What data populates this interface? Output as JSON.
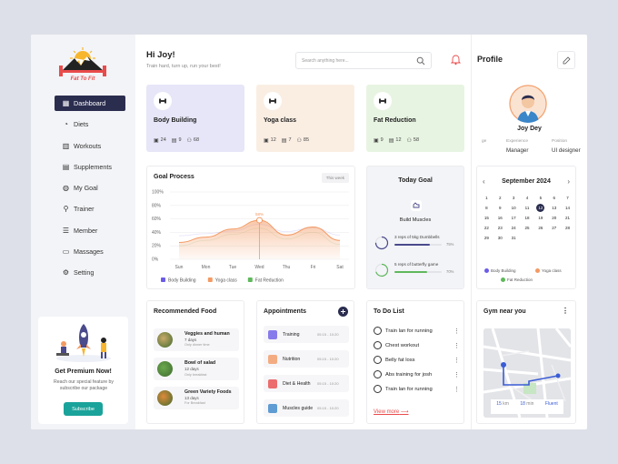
{
  "brand": {
    "logo_text": "Fat To Fit"
  },
  "sidebar": {
    "items": [
      {
        "label": "Dashboard",
        "icon": "grid-icon",
        "active": true
      },
      {
        "label": "Diets",
        "icon": "diet-icon"
      },
      {
        "label": "Workouts",
        "icon": "workout-icon"
      },
      {
        "label": "Supplements",
        "icon": "supplement-icon"
      },
      {
        "label": "My Goal",
        "icon": "goal-icon"
      },
      {
        "label": "Trainer",
        "icon": "trainer-icon"
      },
      {
        "label": "Member",
        "icon": "member-icon"
      },
      {
        "label": "Massages",
        "icon": "message-icon"
      },
      {
        "label": "Setting",
        "icon": "gear-icon"
      }
    ],
    "premium": {
      "title": "Get Premium Now!",
      "desc": "Reach our special feature by subscribe our package",
      "button": "Subscribe"
    }
  },
  "header": {
    "greeting": "Hi Joy!",
    "subtitle": "Train hard, turn up, run your best!",
    "search_placeholder": "Search anything here..."
  },
  "programs": [
    {
      "title": "Body Building",
      "a": "24",
      "b": "9",
      "c": "68",
      "color": "#e6e6f8",
      "icon": "dumbbell-icon"
    },
    {
      "title": "Yoga class",
      "a": "12",
      "b": "7",
      "c": "85",
      "color": "#faeee3",
      "icon": "yoga-icon"
    },
    {
      "title": "Fat Reduction",
      "a": "9",
      "b": "12",
      "c": "58",
      "color": "#e8f4e2",
      "icon": "fat-icon"
    }
  ],
  "goal_process": {
    "title": "Goal Process",
    "range": "This week",
    "chart_data": {
      "type": "area",
      "categories": [
        "Sun",
        "Mon",
        "Tue",
        "Wed",
        "Thu",
        "Fri",
        "Sat"
      ],
      "y_ticks": [
        "100%",
        "80%",
        "60%",
        "40%",
        "20%",
        "0%"
      ],
      "series": [
        {
          "name": "Body Building",
          "color": "#6b5ce7",
          "values": [
            35,
            38,
            42,
            52,
            41,
            47,
            36
          ]
        },
        {
          "name": "Yoga class",
          "color": "#f39a63",
          "values": [
            25,
            33,
            45,
            58,
            36,
            48,
            28
          ]
        },
        {
          "name": "Fat Reduction",
          "color": "#5fb85c",
          "values": [
            20,
            28,
            37,
            46,
            30,
            40,
            22
          ]
        }
      ],
      "highlight": {
        "category": "Wed",
        "label": "58%"
      },
      "ylim": [
        0,
        100
      ]
    }
  },
  "today_goal": {
    "title": "Today Goal",
    "goal": "Build Muscles",
    "tasks": [
      {
        "text": "3 reps of 5kg Dumbbells",
        "pct": "75%",
        "color": "#4a4a8c",
        "progress": 0.75
      },
      {
        "text": "5 reps of butterfly game",
        "pct": "70%",
        "color": "#5fb85c",
        "progress": 0.7
      }
    ]
  },
  "profile": {
    "title": "Profile",
    "name": "Joy Dey",
    "info": [
      {
        "label": "ge",
        "value": ""
      },
      {
        "label": "Experience",
        "value": "Manager"
      },
      {
        "label": "Position",
        "value": "UI designer"
      }
    ]
  },
  "calendar": {
    "month": "September 2024",
    "days": [
      "Su",
      "Mo",
      "Tu",
      "We",
      "Th",
      "Fr",
      "Sa"
    ],
    "cells": [
      "1",
      "2",
      "3",
      "4",
      "5",
      "6",
      "7",
      "8",
      "9",
      "10",
      "11",
      "12",
      "13",
      "14",
      "15",
      "16",
      "17",
      "18",
      "19",
      "20",
      "21",
      "22",
      "23",
      "24",
      "25",
      "26",
      "27",
      "28",
      "29",
      "30",
      "31"
    ],
    "selected": "12",
    "legend": [
      {
        "label": "Body Building",
        "color": "#6b5ce7"
      },
      {
        "label": "Yoga class",
        "color": "#f39a63"
      },
      {
        "label": "Fat Reduction",
        "color": "#5fb85c"
      }
    ]
  },
  "recommended": {
    "title": "Recommended Food",
    "items": [
      {
        "name": "Veggies and human",
        "days": "7 days",
        "meta": "Only dinner time",
        "color": "#c9a96a"
      },
      {
        "name": "Bowl of salad",
        "days": "12 days",
        "meta": "Only breakfast",
        "color": "#6aa84f"
      },
      {
        "name": "Green Variety Foods",
        "days": "13 days",
        "meta": "For Breakfast",
        "color": "#e08a3a"
      }
    ]
  },
  "appointments": {
    "title": "Appointments",
    "items": [
      {
        "name": "Training",
        "time": "05:15 - 10:20",
        "color": "#6b5ce7"
      },
      {
        "name": "Nutrition",
        "time": "05:15 - 10:20",
        "color": "#f39a63"
      },
      {
        "name": "Diet & Health",
        "time": "05:15 - 10:20",
        "color": "#e94b4b"
      },
      {
        "name": "Muscles guide",
        "time": "05:15 - 10:20",
        "color": "#3a86c9"
      }
    ]
  },
  "todo": {
    "title": "To Do List",
    "items": [
      "Train lan for running",
      "Chest workout",
      "Belly fat loss",
      "Abs training for josh",
      "Train lan for running"
    ],
    "view_more": "View more"
  },
  "gym": {
    "title": "Gym near you",
    "stat1": "15",
    "stat2": "18",
    "stat3": "Fluent",
    "u1": "km",
    "u2": "min"
  }
}
